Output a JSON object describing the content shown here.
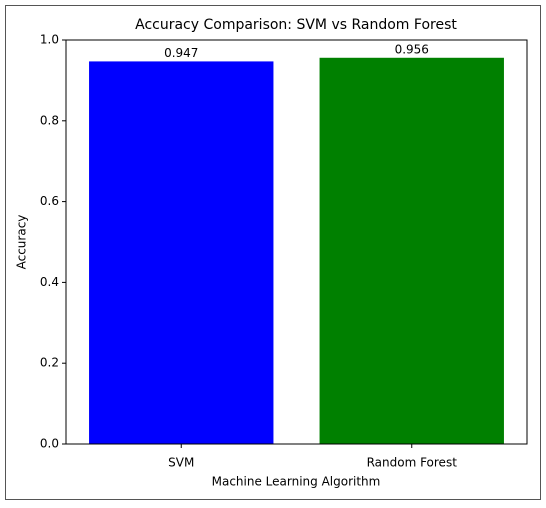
{
  "chart_data": {
    "type": "bar",
    "title": "Accuracy Comparison: SVM vs Random Forest",
    "x_label": "Machine Learning Algorithm",
    "y_label": "Accuracy",
    "categories": [
      "SVM",
      "Random Forest"
    ],
    "values": [
      0.947,
      0.956
    ],
    "colors": [
      "#0000ff",
      "#008000"
    ],
    "ylim": [
      0,
      1
    ],
    "yticks": [
      {
        "value": 0,
        "label": "0.0"
      },
      0.2,
      0.4,
      0.6,
      0.8,
      {
        "value": 1,
        "label": "1.0"
      }
    ],
    "grid": false
  }
}
